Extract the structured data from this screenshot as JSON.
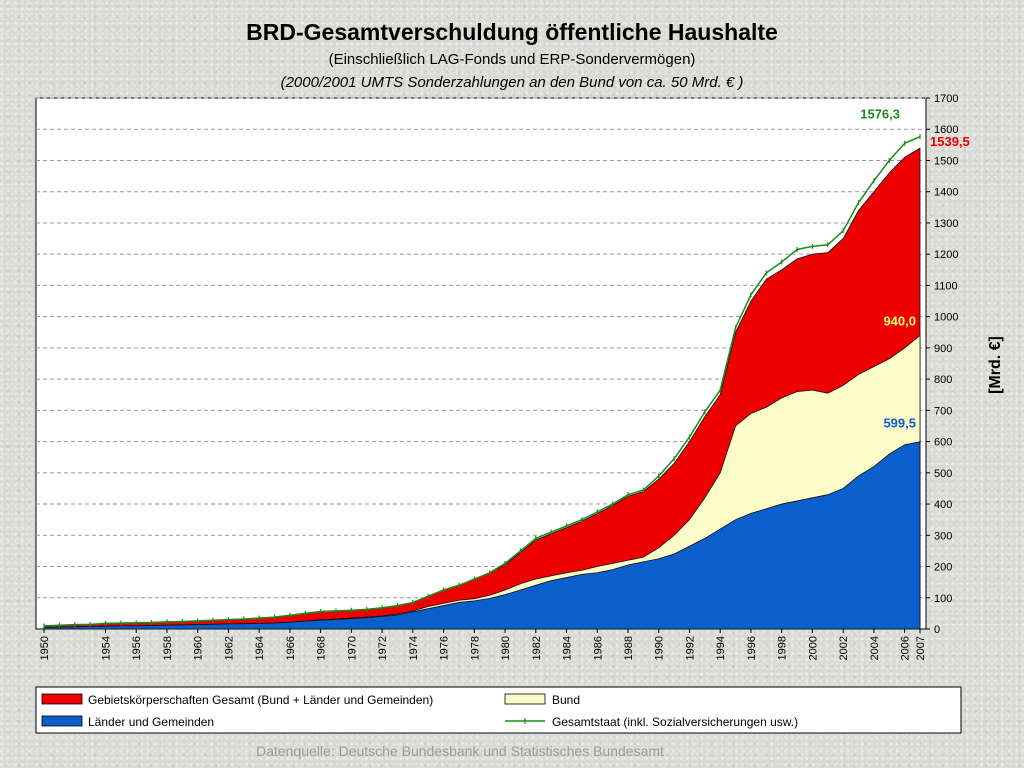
{
  "chart_data": {
    "type": "area",
    "title": "BRD-Gesamtverschuldung öffentliche Haushalte",
    "subtitle": "(Einschließlich LAG-Fonds und ERP-Sondervermögen)",
    "subtitle2": "(2000/2001 UMTS Sonderzahlungen an den Bund von ca. 50 Mrd. € )",
    "ylabel": "[Mrd. €]",
    "ylim": [
      0,
      1700
    ],
    "y_ticks": [
      "0",
      "100",
      "200",
      "300",
      "400",
      "500",
      "600",
      "700",
      "800",
      "900",
      "1000",
      "1100",
      "1200",
      "1300",
      "1400",
      "1500",
      "1600",
      "1700"
    ],
    "x_ticks": [
      "1950",
      "1954",
      "1956",
      "1958",
      "1960",
      "1962",
      "1964",
      "1966",
      "1968",
      "1970",
      "1972",
      "1974",
      "1976",
      "1978",
      "1980",
      "1982",
      "1984",
      "1986",
      "1988",
      "1990",
      "1992",
      "1994",
      "1996",
      "1998",
      "2000",
      "2002",
      "2004",
      "2006",
      "2007"
    ],
    "grid": true,
    "x": [
      1950,
      1951,
      1952,
      1953,
      1954,
      1955,
      1956,
      1957,
      1958,
      1959,
      1960,
      1961,
      1962,
      1963,
      1964,
      1965,
      1966,
      1967,
      1968,
      1969,
      1970,
      1971,
      1972,
      1973,
      1974,
      1975,
      1976,
      1977,
      1978,
      1979,
      1980,
      1981,
      1982,
      1983,
      1984,
      1985,
      1986,
      1987,
      1988,
      1989,
      1990,
      1991,
      1992,
      1993,
      1994,
      1995,
      1996,
      1997,
      1998,
      1999,
      2000,
      2001,
      2002,
      2003,
      2004,
      2005,
      2006,
      2007
    ],
    "series": [
      {
        "name": "Gebietskörperschaften Gesamt (Bund + Länder und Gemeinden)",
        "color": "#ee0000",
        "values": [
          10,
          12,
          14,
          15,
          18,
          19,
          20,
          21,
          23,
          24,
          26,
          28,
          30,
          32,
          35,
          38,
          44,
          50,
          56,
          58,
          60,
          63,
          68,
          75,
          85,
          105,
          125,
          140,
          160,
          180,
          205,
          245,
          285,
          305,
          325,
          345,
          370,
          395,
          425,
          440,
          480,
          530,
          600,
          680,
          750,
          950,
          1050,
          1120,
          1150,
          1185,
          1200,
          1205,
          1250,
          1340,
          1400,
          1460,
          1510,
          1539.5
        ]
      },
      {
        "name": "Bund",
        "color": "#fcfcc8",
        "values": [
          5,
          6,
          7,
          8,
          9,
          10,
          10,
          11,
          12,
          13,
          14,
          15,
          16,
          17,
          18,
          19,
          22,
          25,
          30,
          32,
          35,
          38,
          42,
          48,
          58,
          72,
          82,
          92,
          97,
          108,
          125,
          145,
          160,
          170,
          180,
          188,
          200,
          210,
          220,
          230,
          260,
          300,
          350,
          420,
          500,
          650,
          690,
          710,
          740,
          760,
          765,
          755,
          780,
          815,
          840,
          865,
          900,
          940
        ]
      },
      {
        "name": "Länder und Gemeinden",
        "color": "#0a5fcc",
        "values": [
          5,
          6,
          7,
          8,
          9,
          10,
          10,
          11,
          12,
          13,
          14,
          15,
          16,
          17,
          18,
          19,
          22,
          25,
          28,
          30,
          33,
          36,
          40,
          45,
          55,
          65,
          75,
          85,
          90,
          98,
          110,
          125,
          140,
          155,
          165,
          175,
          180,
          190,
          205,
          215,
          225,
          240,
          265,
          290,
          320,
          350,
          370,
          385,
          400,
          410,
          420,
          430,
          450,
          490,
          520,
          560,
          590,
          599.5
        ]
      },
      {
        "name": "Gesamtstaat (inkl. Sozialversicherungen usw.)",
        "color": "#1a8c1a",
        "values": [
          10,
          12,
          14,
          15,
          18,
          19,
          20,
          21,
          23,
          24,
          26,
          28,
          30,
          32,
          35,
          38,
          44,
          50,
          56,
          58,
          60,
          63,
          68,
          75,
          85,
          105,
          125,
          140,
          160,
          180,
          210,
          250,
          290,
          310,
          330,
          350,
          375,
          400,
          430,
          445,
          490,
          545,
          615,
          695,
          765,
          965,
          1070,
          1140,
          1175,
          1215,
          1225,
          1230,
          1275,
          1365,
          1435,
          1500,
          1555,
          1576.3
        ]
      }
    ],
    "annotations": [
      {
        "text": "1576,3",
        "color": "#1a8c1a"
      },
      {
        "text": "1539,5",
        "color": "#ee0000"
      },
      {
        "text": "940,0",
        "color": "#ffff66"
      },
      {
        "text": "599,5",
        "color": "#0a5fcc"
      }
    ],
    "legend": {
      "placement": "bottom",
      "entries": [
        "Gebietskörperschaften Gesamt (Bund + Länder und Gemeinden)",
        "Bund",
        "Länder und Gemeinden",
        "Gesamtstaat (inkl. Sozialversicherungen usw.)"
      ]
    },
    "source": "Datenquelle: Deutsche Bundesbank und Statistisches Bundesamt"
  }
}
